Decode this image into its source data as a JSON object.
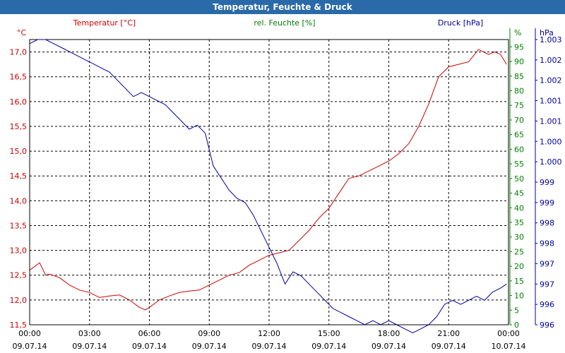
{
  "chart_data": {
    "type": "line",
    "title": "Temperatur, Feuchte & Druck",
    "axes": {
      "left": {
        "label": "Temperatur [°C]",
        "unit": "°C",
        "range": [
          11.5,
          17.25
        ],
        "ticks": [
          "11,5",
          "12,0",
          "12,5",
          "13,0",
          "13,5",
          "14,0",
          "14,5",
          "15,0",
          "15,5",
          "16,0",
          "16,5",
          "17,0"
        ],
        "color": "#cc0000"
      },
      "right1": {
        "label": "rel. Feuchte [%]",
        "unit": "%",
        "range": [
          0,
          97.5
        ],
        "ticks": [
          "0",
          "5",
          "10",
          "15",
          "20",
          "25",
          "30",
          "35",
          "40",
          "45",
          "50",
          "55",
          "60",
          "65",
          "70",
          "75",
          "80",
          "85",
          "90",
          "95"
        ],
        "color": "#008000"
      },
      "right2": {
        "label": "Druck [hPa]",
        "unit": "hPa",
        "range": [
          996,
          1003
        ],
        "ticks": [
          "996",
          "996",
          "997",
          "997",
          "998",
          "998",
          "999",
          "999",
          "1.000",
          "1.000",
          "1.001",
          "1.001",
          "1.002",
          "1.002",
          "1.003"
        ],
        "color": "#000099"
      }
    },
    "x_ticks": [
      {
        "time": "00:00",
        "date": "09.07.14"
      },
      {
        "time": "03:00",
        "date": "09.07.14"
      },
      {
        "time": "06:00",
        "date": "09.07.14"
      },
      {
        "time": "09:00",
        "date": "09.07.14"
      },
      {
        "time": "12:00",
        "date": "09.07.14"
      },
      {
        "time": "15:00",
        "date": "09.07.14"
      },
      {
        "time": "18:00",
        "date": "09.07.14"
      },
      {
        "time": "21:00",
        "date": "09.07.14"
      },
      {
        "time": "00:00",
        "date": "10.07.14"
      }
    ],
    "x_range_hours": [
      0,
      24
    ],
    "series": [
      {
        "name": "Temperatur [°C]",
        "color": "#cc0000",
        "axis": "left",
        "x": [
          0,
          0.5,
          0.8,
          1.0,
          1.5,
          2.0,
          2.5,
          3.0,
          3.5,
          4.0,
          4.5,
          5.0,
          5.5,
          5.8,
          6.0,
          6.5,
          7.0,
          7.5,
          8.0,
          8.5,
          9.0,
          9.5,
          10.0,
          10.5,
          11.0,
          11.5,
          12.0,
          12.5,
          13.0,
          13.5,
          14.0,
          14.5,
          15.0,
          15.5,
          16.0,
          16.5,
          17.0,
          17.5,
          18.0,
          18.5,
          19.0,
          19.5,
          20.0,
          20.5,
          21.0,
          21.5,
          22.0,
          22.5,
          23.0,
          23.3,
          23.6,
          23.9
        ],
        "y": [
          12.6,
          12.75,
          12.5,
          12.52,
          12.45,
          12.3,
          12.2,
          12.15,
          12.05,
          12.08,
          12.1,
          12.0,
          11.85,
          11.8,
          11.85,
          12.0,
          12.08,
          12.15,
          12.18,
          12.2,
          12.3,
          12.4,
          12.5,
          12.55,
          12.7,
          12.8,
          12.9,
          12.95,
          13.0,
          13.2,
          13.4,
          13.65,
          13.85,
          14.15,
          14.45,
          14.5,
          14.6,
          14.7,
          14.8,
          14.95,
          15.15,
          15.5,
          15.95,
          16.5,
          16.7,
          16.75,
          16.8,
          17.05,
          16.95,
          17.0,
          16.95,
          16.75
        ]
      },
      {
        "name": "Druck [hPa]",
        "color": "#000099",
        "axis": "right2",
        "x": [
          0,
          0.4,
          0.8,
          1.2,
          1.6,
          2.0,
          2.4,
          2.8,
          3.2,
          3.6,
          4.0,
          4.4,
          4.8,
          5.2,
          5.6,
          6.0,
          6.4,
          6.8,
          7.2,
          7.6,
          8.0,
          8.4,
          8.8,
          9.2,
          9.6,
          10.0,
          10.4,
          10.8,
          11.2,
          11.6,
          12.0,
          12.4,
          12.8,
          13.2,
          13.6,
          14.0,
          14.4,
          14.8,
          15.2,
          15.6,
          16.0,
          16.4,
          16.8,
          17.2,
          17.6,
          18.0,
          18.4,
          18.8,
          19.2,
          19.6,
          20.0,
          20.4,
          20.8,
          21.2,
          21.6,
          22.0,
          22.4,
          22.8,
          23.2,
          23.6,
          23.9
        ],
        "y": [
          1002.9,
          1003.0,
          1003.0,
          1002.9,
          1002.8,
          1002.7,
          1002.6,
          1002.5,
          1002.4,
          1002.3,
          1002.2,
          1002.0,
          1001.8,
          1001.6,
          1001.7,
          1001.6,
          1001.5,
          1001.4,
          1001.2,
          1001.0,
          1000.8,
          1000.9,
          1000.7,
          999.9,
          999.6,
          999.3,
          999.1,
          999.0,
          998.7,
          998.3,
          997.9,
          997.5,
          997.0,
          997.3,
          997.2,
          997.0,
          996.8,
          996.6,
          996.4,
          996.3,
          996.2,
          996.1,
          996.0,
          996.1,
          996.0,
          996.1,
          996.0,
          995.9,
          995.8,
          995.9,
          996.0,
          996.2,
          996.5,
          996.6,
          996.5,
          996.6,
          996.7,
          996.6,
          996.8,
          996.9,
          997.0
        ]
      },
      {
        "name": "rel. Feuchte [%]",
        "color": "#008000",
        "axis": "right1",
        "x": [],
        "y": []
      }
    ],
    "grid": true
  }
}
